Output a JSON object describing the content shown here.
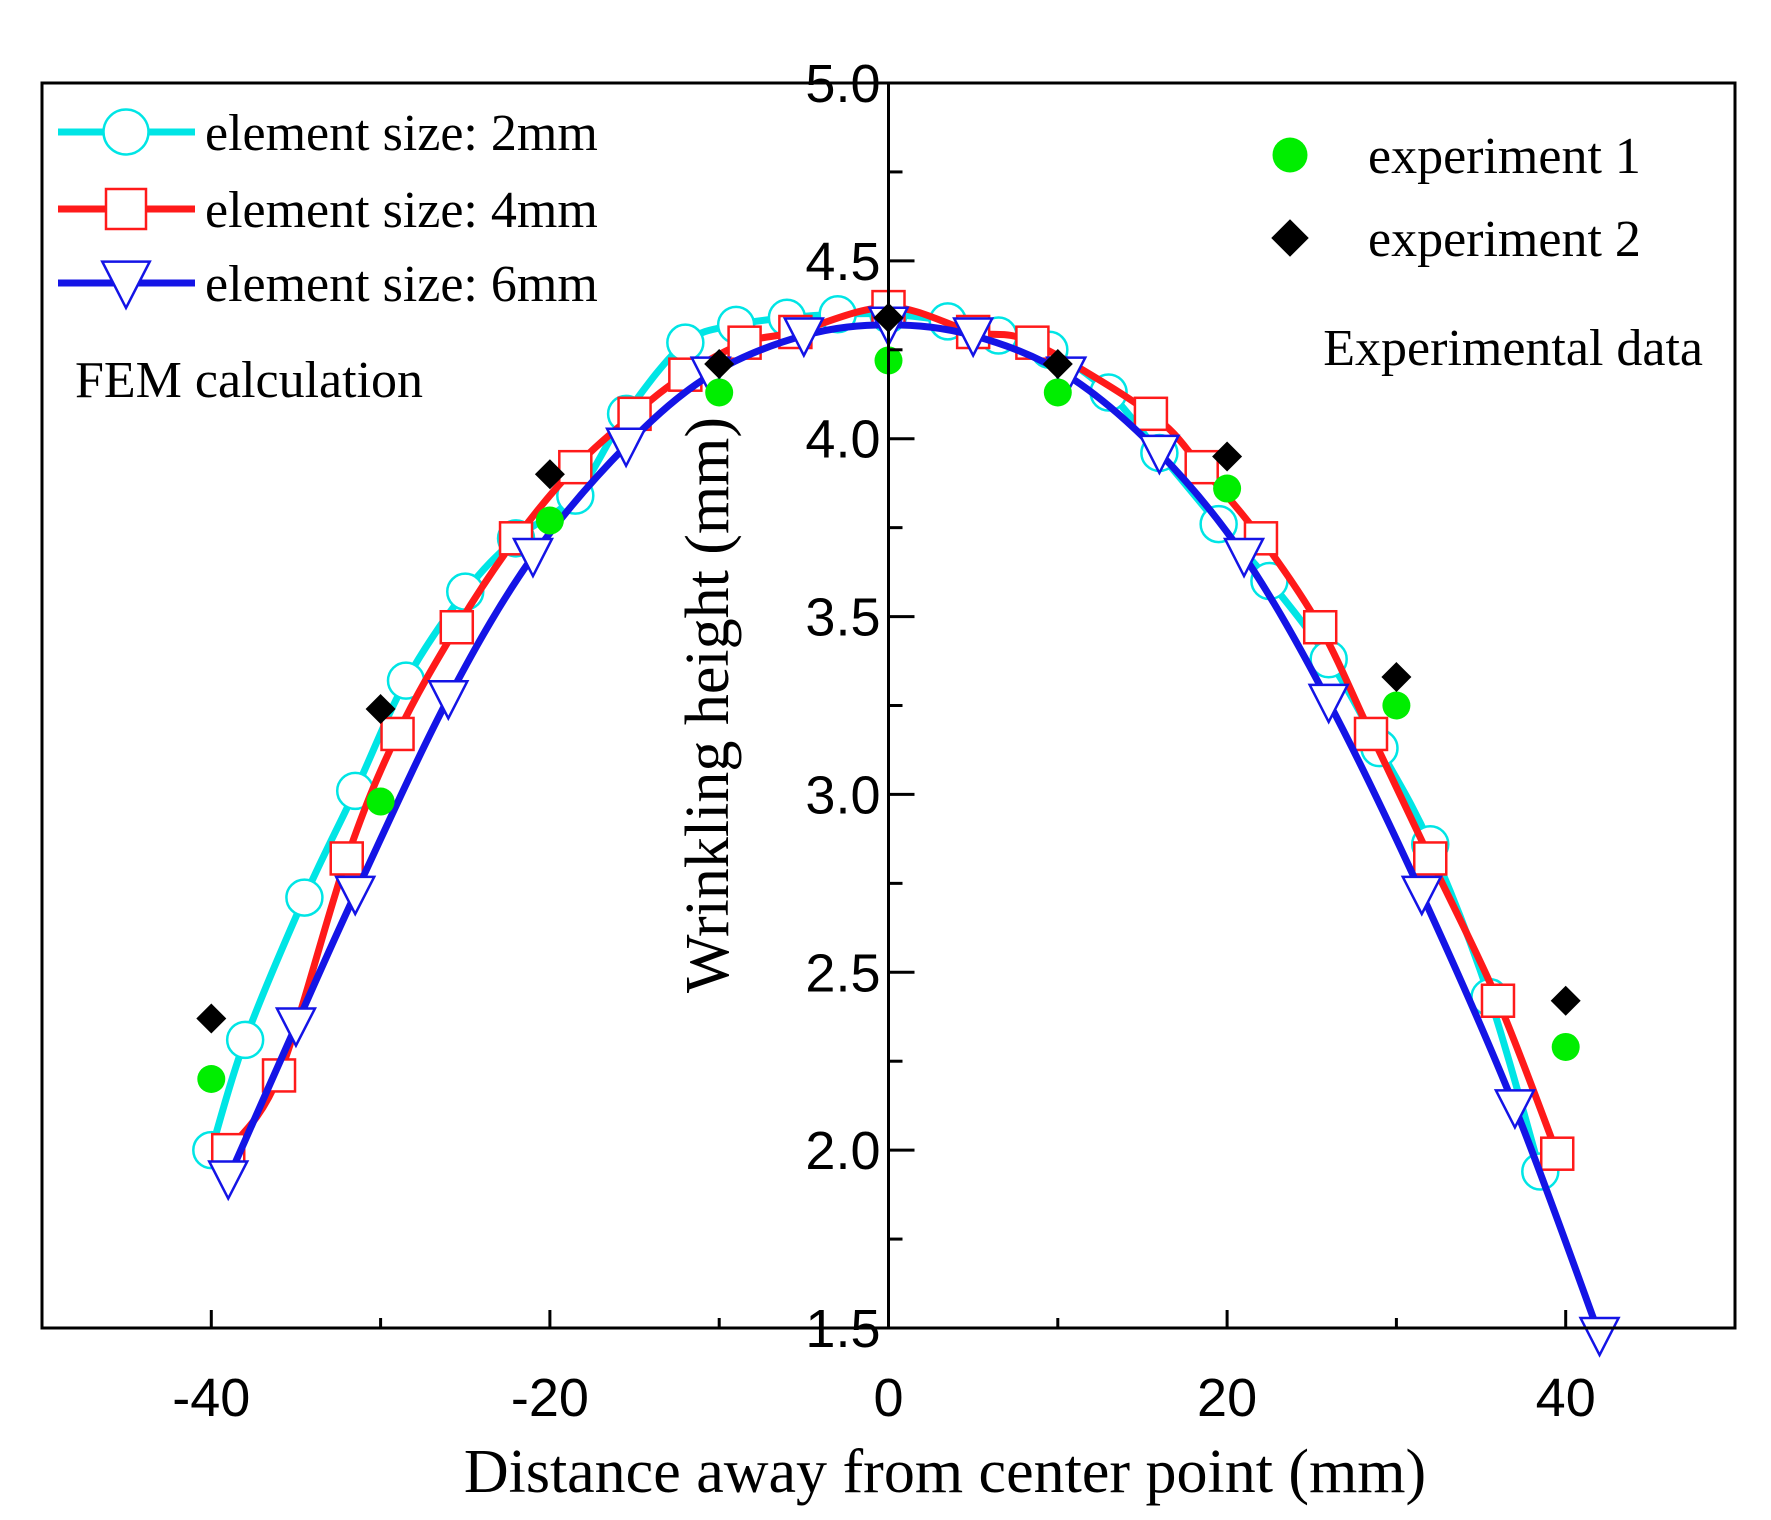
{
  "chart_data": {
    "type": "line",
    "title": "",
    "xlabel": "Distance away from center point (mm)",
    "ylabel": "Wrinkling height (mm)",
    "xlim": [
      -50,
      50
    ],
    "ylim": [
      1.5,
      5.0
    ],
    "xticks": [
      -40,
      -20,
      0,
      20,
      40
    ],
    "xtick_labels": [
      "-40",
      "-20",
      "0",
      "20",
      "40"
    ],
    "yticks": [
      1.5,
      2.0,
      2.5,
      3.0,
      3.5,
      4.0,
      4.5,
      5.0
    ],
    "ytick_labels": [
      "1.5",
      "2.0",
      "2.5",
      "3.0",
      "3.5",
      "4.0",
      "4.5",
      "5.0"
    ],
    "grid": false,
    "annotations": {
      "fem": "FEM calculation",
      "experimental": "Experimental data"
    },
    "series": [
      {
        "name": "element size: 2mm",
        "color": "#00e5e5",
        "marker": "circle",
        "line": true,
        "x": [
          -40,
          -38,
          -34.5,
          -31.5,
          -28.5,
          -25,
          -22,
          -18.5,
          -15.5,
          -12,
          -9,
          -6,
          -3,
          0,
          3.5,
          6.5,
          9.5,
          13,
          16,
          19.5,
          22.5,
          26,
          29,
          32,
          35.5,
          38.5
        ],
        "y": [
          2.0,
          2.31,
          2.71,
          3.01,
          3.32,
          3.57,
          3.72,
          3.84,
          4.07,
          4.27,
          4.32,
          4.34,
          4.35,
          4.35,
          4.33,
          4.29,
          4.25,
          4.13,
          3.96,
          3.76,
          3.6,
          3.38,
          3.13,
          2.86,
          2.43,
          1.94
        ]
      },
      {
        "name": "element size: 4mm",
        "color": "#ff1a1a",
        "marker": "square",
        "line": true,
        "x": [
          -39,
          -36,
          -32,
          -29,
          -25.5,
          -22,
          -18.5,
          -15,
          -12,
          -8.5,
          -5.5,
          0,
          5,
          8.5,
          15.5,
          18.5,
          22,
          25.5,
          28.5,
          32,
          36,
          39.5
        ],
        "y": [
          2.0,
          2.21,
          2.82,
          3.17,
          3.47,
          3.72,
          3.92,
          4.07,
          4.18,
          4.27,
          4.3,
          4.37,
          4.3,
          4.27,
          4.07,
          3.92,
          3.72,
          3.47,
          3.17,
          2.82,
          2.42,
          1.99
        ]
      },
      {
        "name": "element size: 6mm",
        "color": "#1414e6",
        "marker": "triangle-down",
        "line": true,
        "x": [
          -39,
          -35,
          -31.5,
          -26,
          -21,
          -15.5,
          -10.5,
          -5,
          0,
          5,
          10.5,
          16,
          21,
          26,
          31.5,
          37,
          42
        ],
        "y": [
          1.92,
          2.35,
          2.72,
          3.27,
          3.67,
          3.98,
          4.18,
          4.29,
          4.32,
          4.29,
          4.18,
          3.96,
          3.67,
          3.26,
          2.72,
          2.12,
          1.48
        ]
      },
      {
        "name": "experiment 1",
        "color": "#00ee00",
        "marker": "dot",
        "line": false,
        "x": [
          -40,
          -30,
          -20,
          -10,
          0,
          10,
          20,
          30,
          40
        ],
        "y": [
          2.2,
          2.98,
          3.77,
          4.13,
          4.22,
          4.13,
          3.86,
          3.25,
          2.29
        ]
      },
      {
        "name": "experiment 2",
        "color": "#000000",
        "marker": "diamond",
        "line": false,
        "x": [
          -40,
          -30,
          -20,
          -10,
          0,
          10,
          20,
          30,
          40
        ],
        "y": [
          2.37,
          3.24,
          3.9,
          4.21,
          4.34,
          4.21,
          3.95,
          3.33,
          2.42
        ]
      }
    ]
  }
}
